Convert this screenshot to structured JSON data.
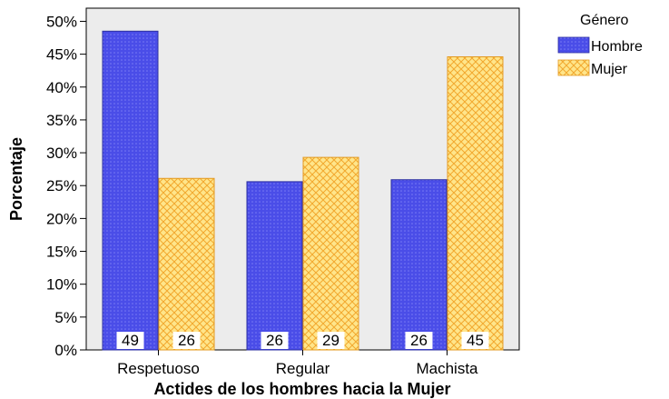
{
  "chart_data": {
    "type": "bar",
    "title": "",
    "xlabel": "Actides de los hombres hacia la Mujer",
    "ylabel": "Porcentaje",
    "categories": [
      "Respetuoso",
      "Regular",
      "Machista"
    ],
    "series": [
      {
        "name": "Hombre",
        "values": [
          48.5,
          25.6,
          25.9
        ],
        "data_labels": [
          "49",
          "26",
          "26"
        ],
        "color": "#4a4de8",
        "pattern": "dots"
      },
      {
        "name": "Mujer",
        "values": [
          26.1,
          29.3,
          44.6
        ],
        "data_labels": [
          "26",
          "29",
          "45"
        ],
        "color": "#ffd24a",
        "pattern": "crosshatch"
      }
    ],
    "ylim": [
      0,
      52
    ],
    "yticks": [
      0,
      5,
      10,
      15,
      20,
      25,
      30,
      35,
      40,
      45,
      50
    ],
    "ytick_labels": [
      "0%",
      "5%",
      "10%",
      "15%",
      "20%",
      "25%",
      "30%",
      "35%",
      "40%",
      "45%",
      "50%"
    ],
    "legend": {
      "title": "Género",
      "position": "top-right"
    },
    "plot_background": "#ececec",
    "grid": false
  }
}
